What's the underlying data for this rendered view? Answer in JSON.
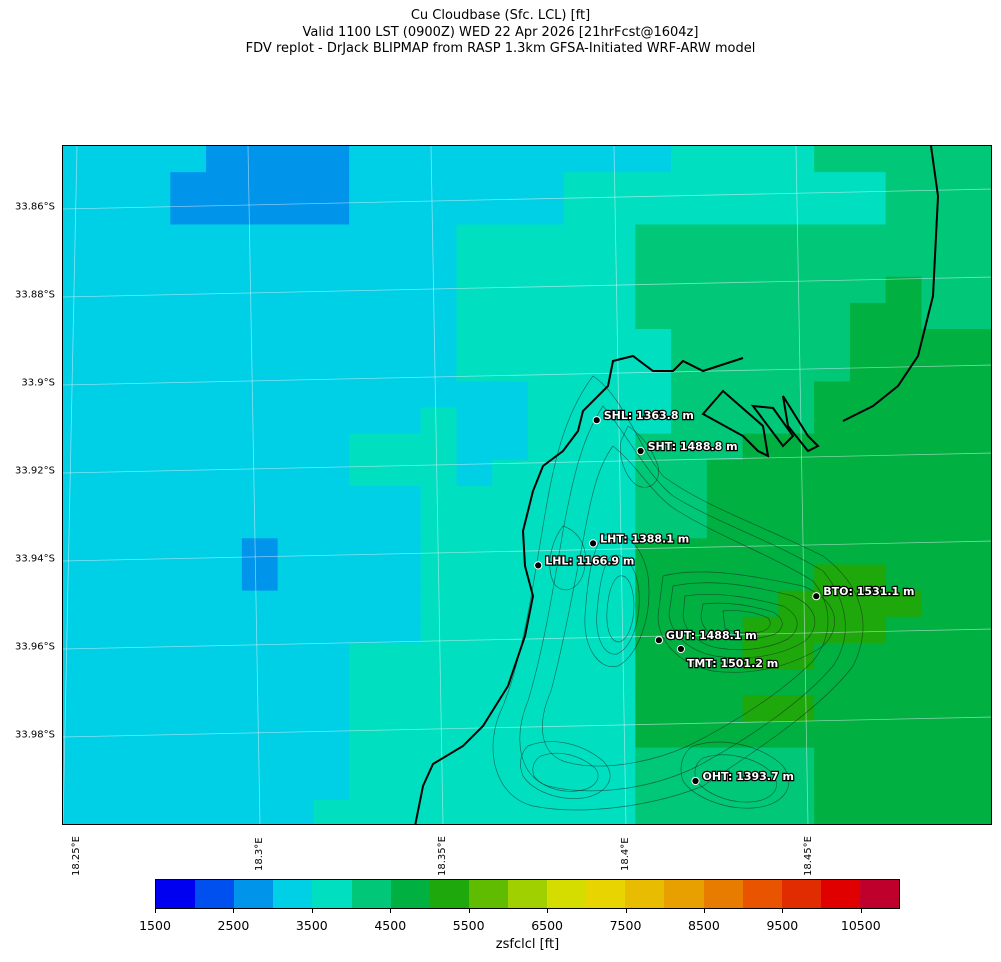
{
  "title": {
    "line1": "Cu Cloudbase (Sfc. LCL) [ft]",
    "line2": "Valid 1100 LST (0900Z) WED 22 Apr 2026 [21hrFcst@1604z]",
    "line3": "FDV replot - DrJack BLIPMAP from RASP 1.3km GFSA-Initiated WRF-ARW model"
  },
  "latitude_labels": [
    "33.86°S",
    "33.88°S",
    "33.9°S",
    "33.92°S",
    "33.94°S",
    "33.96°S",
    "33.98°S"
  ],
  "longitude_labels": [
    "18.25°E",
    "18.3°E",
    "18.35°E",
    "18.4°E",
    "18.45°E"
  ],
  "stations": [
    {
      "name": "SHL",
      "label": "SHL: 1363.8 m",
      "lon": 18.392,
      "lat": -33.908
    },
    {
      "name": "SHT",
      "label": "SHT: 1488.8 m",
      "lon": 18.404,
      "lat": -33.915
    },
    {
      "name": "LHT",
      "label": "LHT: 1388.1 m",
      "lon": 18.391,
      "lat": -33.936
    },
    {
      "name": "LHL",
      "label": "LHL: 1166.9 m",
      "lon": 18.376,
      "lat": -33.941
    },
    {
      "name": "BTO",
      "label": "BTO: 1531.1 m",
      "lon": 18.452,
      "lat": -33.948
    },
    {
      "name": "GUT",
      "label": "GUT: 1488.1 m",
      "lon": 18.409,
      "lat": -33.958
    },
    {
      "name": "TMT",
      "label": "TMT: 1501.2 m",
      "lon": 18.415,
      "lat": -33.96
    },
    {
      "name": "OHT",
      "label": "OHT: 1393.7 m",
      "lon": 18.419,
      "lat": -33.99
    }
  ],
  "colorbar": {
    "label": "zsfclcl [ft]",
    "ticks": [
      "1500",
      "2500",
      "3500",
      "4500",
      "5500",
      "6500",
      "7500",
      "8500",
      "9500",
      "10500"
    ],
    "colors": [
      "#0000f0",
      "#0050f0",
      "#0094ea",
      "#00d0e6",
      "#00e0c0",
      "#00c878",
      "#00b040",
      "#1ea80c",
      "#60bc00",
      "#a0d000",
      "#d4dc00",
      "#e8d400",
      "#e8bc00",
      "#e8a000",
      "#e87c00",
      "#e85400",
      "#e02c00",
      "#e00000",
      "#c0002c"
    ]
  },
  "cloudbase_grid": {
    "level_colors": {
      "1": "#0094ea",
      "2": "#00d0e6",
      "3": "#00e0c0",
      "4": "#00c878",
      "5": "#00b040",
      "6": "#1ea80c"
    },
    "rows": [
      "22221111222222222333344444",
      "22211111222222333333333444",
      "22211111222222333333333444",
      "22222222222333334444444444",
      "22222222222333334444444444",
      "22222222222333334444444544",
      "22222222222333334444445544",
      "22222222222333333444445555",
      "22222222222333333444445555",
      "22222222222223333444455555",
      "22222222223223333444455555",
      "22222222333223334445555555",
      "22222222333233334455555555",
      "22222222223333334455555555",
      "22222222223333334455555555",
      "22222122223333335555555555",
      "22222122223333335555566555",
      "22222222223333335555666655",
      "22222222223333335556666555",
      "22222222333333335556655555",
      "22222222333333335555555555",
      "22222222333333335556655555",
      "22222222333333335555555555",
      "22222222333333334444455555",
      "22222222333333334444455555",
      "22222223333333334444455555"
    ]
  }
}
